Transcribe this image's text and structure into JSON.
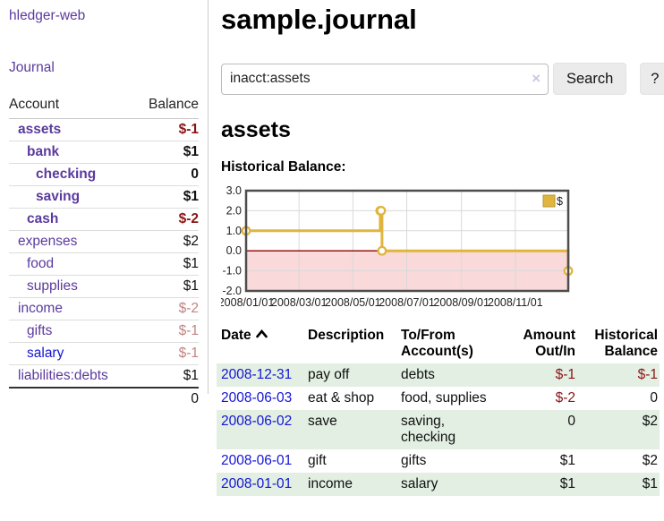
{
  "colors": {
    "purple": "#5b3a9e",
    "link_blue": "#1414d6",
    "neg_strong": "#8b1515",
    "neg_soft": "#c28383",
    "row_green": "#e2efe2",
    "button_gray": "#ebebeb",
    "chart_gold": "#e0b53f",
    "chart_pink": "#f9d9d9",
    "zero_red": "#8b0000"
  },
  "sidebar": {
    "app_title": "hledger-web",
    "journal_label": "Journal",
    "accounts_table": {
      "headers": {
        "account": "Account",
        "balance": "Balance"
      },
      "rows": [
        {
          "name": "assets",
          "balance": "$-1",
          "level": 1,
          "bold": true,
          "balance_tone": "neg-strong",
          "link_tone": "visited"
        },
        {
          "name": "bank",
          "balance": "$1",
          "level": 2,
          "bold": true,
          "balance_tone": "normal",
          "link_tone": "visited"
        },
        {
          "name": "checking",
          "balance": "0",
          "level": 3,
          "bold": true,
          "balance_tone": "normal",
          "link_tone": "visited"
        },
        {
          "name": "saving",
          "balance": "$1",
          "level": 3,
          "bold": true,
          "balance_tone": "normal",
          "link_tone": "visited"
        },
        {
          "name": "cash",
          "balance": "$-2",
          "level": 2,
          "bold": true,
          "balance_tone": "neg-strong",
          "link_tone": "visited"
        },
        {
          "name": "expenses",
          "balance": "$2",
          "level": 1,
          "bold": false,
          "balance_tone": "normal",
          "link_tone": "visited"
        },
        {
          "name": "food",
          "balance": "$1",
          "level": 2,
          "bold": false,
          "balance_tone": "normal",
          "link_tone": "visited"
        },
        {
          "name": "supplies",
          "balance": "$1",
          "level": 2,
          "bold": false,
          "balance_tone": "normal",
          "link_tone": "visited"
        },
        {
          "name": "income",
          "balance": "$-2",
          "level": 1,
          "bold": false,
          "balance_tone": "neg-soft",
          "link_tone": "visited"
        },
        {
          "name": "gifts",
          "balance": "$-1",
          "level": 2,
          "bold": false,
          "balance_tone": "neg-soft",
          "link_tone": "visited"
        },
        {
          "name": "salary",
          "balance": "$-1",
          "level": 2,
          "bold": false,
          "balance_tone": "neg-soft",
          "link_tone": "unvisited"
        },
        {
          "name": "liabilities:debts",
          "balance": "$1",
          "level": 1,
          "bold": false,
          "balance_tone": "normal",
          "link_tone": "visited"
        }
      ],
      "total": "0"
    }
  },
  "main": {
    "title": "sample.journal",
    "search": {
      "value": "inacct:assets",
      "clear_icon": "×",
      "button_label": "Search",
      "help_label": "?"
    },
    "account_heading": "assets",
    "chart_label": "Historical Balance:",
    "register_table": {
      "headers": {
        "date": "Date",
        "description": "Description",
        "accounts": "To/From Account(s)",
        "amount": "Amount Out/In",
        "balance": "Historical Balance"
      },
      "rows": [
        {
          "date": "2008-12-31",
          "description": "pay off",
          "accounts": "debts",
          "amount": "$-1",
          "balance": "$-1"
        },
        {
          "date": "2008-06-03",
          "description": "eat & shop",
          "accounts": "food, supplies",
          "amount": "$-2",
          "balance": "0"
        },
        {
          "date": "2008-06-02",
          "description": "save",
          "accounts": "saving, checking",
          "amount": "0",
          "balance": "$2"
        },
        {
          "date": "2008-06-01",
          "description": "gift",
          "accounts": "gifts",
          "amount": "$1",
          "balance": "$2"
        },
        {
          "date": "2008-01-01",
          "description": "income",
          "accounts": "salary",
          "amount": "$1",
          "balance": "$1"
        }
      ]
    }
  },
  "chart_data": {
    "type": "line",
    "step": true,
    "title": "Historical Balance",
    "series": [
      {
        "name": "$",
        "color": "#e0b53f",
        "points": [
          {
            "x": "2008-01-01",
            "y": 1
          },
          {
            "x": "2008-06-01",
            "y": 2
          },
          {
            "x": "2008-06-02",
            "y": 2
          },
          {
            "x": "2008-06-03",
            "y": 0
          },
          {
            "x": "2008-12-31",
            "y": -1
          }
        ]
      }
    ],
    "xlim": [
      "2008-01-01",
      "2008-12-31"
    ],
    "ylim": [
      -2,
      3
    ],
    "y_ticks": [
      "3.0",
      "2.0",
      "1.0",
      "0.0",
      "-1.0",
      "-2.0"
    ],
    "x_ticks": [
      {
        "label": "2008/01/01",
        "date": "2008-01-01"
      },
      {
        "label": "2008/03/01",
        "date": "2008-03-01"
      },
      {
        "label": "2008/05/01",
        "date": "2008-05-01"
      },
      {
        "label": "2008/07/01",
        "date": "2008-07-01"
      },
      {
        "label": "2008/09/01",
        "date": "2008-09-01"
      },
      {
        "label": "2008/11/01",
        "date": "2008-11-01"
      }
    ],
    "grid": true,
    "legend_position": "top-right",
    "negative_area_shaded": true
  }
}
